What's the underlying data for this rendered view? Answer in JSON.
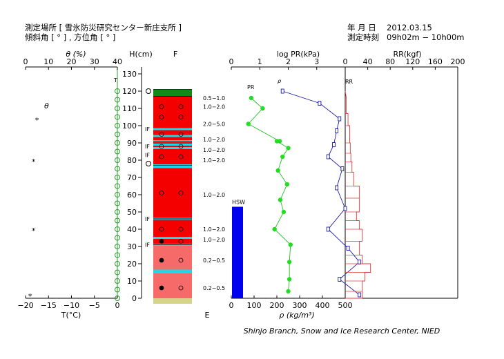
{
  "header": {
    "site_label": "測定場所 [ 雪氷防災研究センター新庄支所 ]",
    "slope_label": "傾斜角 [ ° ] , 方位角 [ ° ]",
    "date_label": "年 月 日",
    "date_value": "2012.03.15",
    "time_label": "測定時刻",
    "time_value": "09h02m − 10h00m"
  },
  "footer": {
    "credit": "Shinjo Branch, Snow and Ice Research Center, NIED"
  },
  "axes": {
    "theta_title": "θ (%)",
    "theta_ticks": [
      "0",
      "10",
      "20",
      "30",
      "40"
    ],
    "temp_title": "T(°C)",
    "temp_ticks": [
      "−20",
      "−15",
      "−10",
      "−5",
      "0"
    ],
    "height_title": "H(cm)",
    "height_ticks": [
      "0",
      "10",
      "20",
      "30",
      "40",
      "50",
      "60",
      "70",
      "80",
      "90",
      "100",
      "110",
      "120",
      "130"
    ],
    "grain_top": "F",
    "grain_bottom": "E",
    "logpr_title": "log PR(kPa)",
    "logpr_ticks": [
      "0",
      "1",
      "2",
      "3",
      "0"
    ],
    "density_title": "ρ (kg/m³)",
    "density_ticks": [
      "0",
      "100",
      "200",
      "300",
      "400",
      "500"
    ],
    "rr_title": "RR(kgf)",
    "rr_ticks": [
      "0",
      "40",
      "80",
      "120",
      "160",
      "200"
    ],
    "series_pr": "PR",
    "series_rho": "ρ",
    "series_rr": "RR",
    "series_t": "T",
    "series_theta": "θ",
    "hsw_label": "HSW",
    "theta_marker": "*"
  },
  "chart_data": {
    "type": "line",
    "snow_depth_cm": 120,
    "hsw_mm": 530,
    "temperature_profile": {
      "t_unit": "°C",
      "h_cm": [
        120,
        115,
        110,
        105,
        100,
        95,
        90,
        85,
        80,
        75,
        70,
        65,
        60,
        55,
        50,
        45,
        40,
        35,
        30,
        25,
        20,
        15,
        10,
        5,
        0
      ],
      "t": [
        0,
        0,
        0,
        0,
        0,
        0,
        0,
        0,
        0,
        0,
        0,
        0,
        0,
        0,
        0,
        0,
        0,
        0,
        0,
        0,
        0,
        0,
        0,
        0,
        0
      ]
    },
    "water_content": {
      "theta_unit": "%",
      "points": [
        {
          "h": 104,
          "theta": 5
        },
        {
          "h": 80,
          "theta": 3.5
        },
        {
          "h": 40,
          "theta": 3.5
        },
        {
          "h": 2,
          "theta": 2
        }
      ]
    },
    "compact_markers": [
      {
        "h": 120,
        "kind": "open"
      },
      {
        "h": 78,
        "kind": "open"
      }
    ],
    "layers": [
      {
        "top": 121,
        "bottom": 117,
        "grain": "green",
        "hardness": "0.5−1.0"
      },
      {
        "top": 117,
        "bottom": 91,
        "grain": "red",
        "hardness": "1.0−2.0"
      },
      {
        "top": 91,
        "bottom": 77,
        "grain": "red",
        "hardness": "1.0−2.0"
      },
      {
        "top": 77,
        "bottom": 46,
        "grain": "red",
        "hardness": "1.0−2.0"
      },
      {
        "top": 46,
        "bottom": 31,
        "grain": "red",
        "hardness": "1.0−2.0"
      },
      {
        "top": 31,
        "bottom": 0,
        "grain": "pink",
        "hardness": "0.2−0.5"
      }
    ],
    "hardness_labels": [
      {
        "h": 116,
        "text": "0.5−1.0"
      },
      {
        "h": 111,
        "text": "1.0−2.0"
      },
      {
        "h": 101,
        "text": "2.0−5.0"
      },
      {
        "h": 92,
        "text": "1.0−2.0"
      },
      {
        "h": 86,
        "text": "1.0−2.0"
      },
      {
        "h": 80,
        "text": "1.0−2.0"
      },
      {
        "h": 60,
        "text": "1.0−2.0"
      },
      {
        "h": 40,
        "text": "1.0−2.0"
      },
      {
        "h": 34,
        "text": "1.0−2.0"
      },
      {
        "h": 22,
        "text": "0.2−0.5"
      },
      {
        "h": 6,
        "text": "0.2−0.5"
      }
    ],
    "ice_films": [
      {
        "h": 98,
        "label": "IF"
      },
      {
        "h": 88,
        "label": "IF"
      },
      {
        "h": 83,
        "label": "IF"
      },
      {
        "h": 46,
        "label": "IF"
      },
      {
        "h": 31,
        "label": "IF"
      }
    ],
    "cyan_bands": [
      98,
      94,
      91,
      89,
      87,
      77,
      76,
      46,
      35,
      31,
      16,
      15
    ],
    "grain_symbols": [
      {
        "h": 111,
        "fill": false
      },
      {
        "h": 105,
        "fill": false
      },
      {
        "h": 95,
        "fill": false
      },
      {
        "h": 88,
        "fill": false
      },
      {
        "h": 82,
        "fill": false
      },
      {
        "h": 61,
        "fill": false
      },
      {
        "h": 40,
        "fill": false
      },
      {
        "h": 33,
        "fill": true
      },
      {
        "h": 22,
        "fill": true
      },
      {
        "h": 6,
        "fill": true
      }
    ],
    "pr_profile": {
      "unit": "log kPa",
      "points": [
        {
          "h": 116,
          "log_pr": 0.7
        },
        {
          "h": 110,
          "log_pr": 1.1
        },
        {
          "h": 101,
          "log_pr": 0.6
        },
        {
          "h": 91,
          "log_pr": 1.7
        }
      ]
    },
    "density_profile": {
      "unit": "kg/m3",
      "points": [
        {
          "h": 91,
          "rho": 200
        },
        {
          "h": 87,
          "rho": 250
        },
        {
          "h": 82,
          "rho": 225
        },
        {
          "h": 74,
          "rho": 205
        },
        {
          "h": 66,
          "rho": 245
        },
        {
          "h": 57,
          "rho": 215
        },
        {
          "h": 50,
          "rho": 230
        },
        {
          "h": 40,
          "rho": 190
        },
        {
          "h": 31,
          "rho": 260
        },
        {
          "h": 21,
          "rho": 255
        },
        {
          "h": 11,
          "rho": 255
        },
        {
          "h": 4,
          "rho": 250
        }
      ]
    },
    "rr_profile": {
      "unit": "kgf",
      "points": [
        {
          "h": 116,
          "rr": 2
        },
        {
          "h": 107,
          "rr": 5
        },
        {
          "h": 100,
          "rr": 8
        },
        {
          "h": 90,
          "rr": 9
        },
        {
          "h": 84,
          "rr": 10
        },
        {
          "h": 79,
          "rr": 12
        },
        {
          "h": 73,
          "rr": 15
        },
        {
          "h": 65,
          "rr": 25
        },
        {
          "h": 58,
          "rr": 25
        },
        {
          "h": 50,
          "rr": 20
        },
        {
          "h": 45,
          "rr": 25
        },
        {
          "h": 40,
          "rr": 30
        },
        {
          "h": 33,
          "rr": 25
        },
        {
          "h": 25,
          "rr": 30
        },
        {
          "h": 20,
          "rr": 45
        },
        {
          "h": 15,
          "rr": 35
        },
        {
          "h": 10,
          "rr": 30
        },
        {
          "h": 4,
          "rr": 30
        }
      ]
    },
    "pr_blue_profile": {
      "unit": "log kPa",
      "points": [
        {
          "h": 120,
          "log_pr": 1.8
        },
        {
          "h": 113,
          "log_pr": 3.1
        },
        {
          "h": 104,
          "log_pr": 3.8
        },
        {
          "h": 97,
          "log_pr": 3.7
        },
        {
          "h": 89,
          "log_pr": 3.6
        },
        {
          "h": 82,
          "log_pr": 3.4
        },
        {
          "h": 75,
          "log_pr": 3.9
        },
        {
          "h": 64,
          "log_pr": 3.7
        },
        {
          "h": 52,
          "log_pr": 4.0
        },
        {
          "h": 40,
          "log_pr": 3.4
        },
        {
          "h": 29,
          "log_pr": 4.1
        },
        {
          "h": 21,
          "log_pr": 4.5
        },
        {
          "h": 11,
          "log_pr": 3.8
        },
        {
          "h": 2,
          "log_pr": 4.5
        }
      ]
    }
  }
}
